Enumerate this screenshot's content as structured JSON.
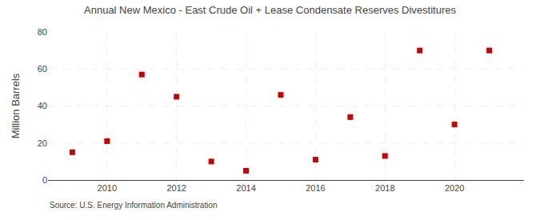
{
  "chart_data": {
    "type": "scatter",
    "title": "Annual New Mexico - East Crude Oil + Lease Condensate Reserves Divestitures",
    "ylabel": "Million Barrels",
    "source": "Source: U.S. Energy Information Administration",
    "x": [
      2009,
      2010,
      2011,
      2012,
      2013,
      2014,
      2015,
      2016,
      2017,
      2018,
      2019,
      2020,
      2021
    ],
    "values": [
      15,
      21,
      57,
      45,
      10,
      5,
      46,
      11,
      34,
      13,
      70,
      30,
      70
    ],
    "color": "#cc0000",
    "marker": "square",
    "xlim": [
      2008.3,
      2022.0
    ],
    "ylim": [
      0,
      80
    ],
    "xticks": [
      2010,
      2012,
      2014,
      2016,
      2018,
      2020
    ],
    "yticks": [
      0,
      20,
      40,
      60,
      80
    ],
    "grid": true
  }
}
